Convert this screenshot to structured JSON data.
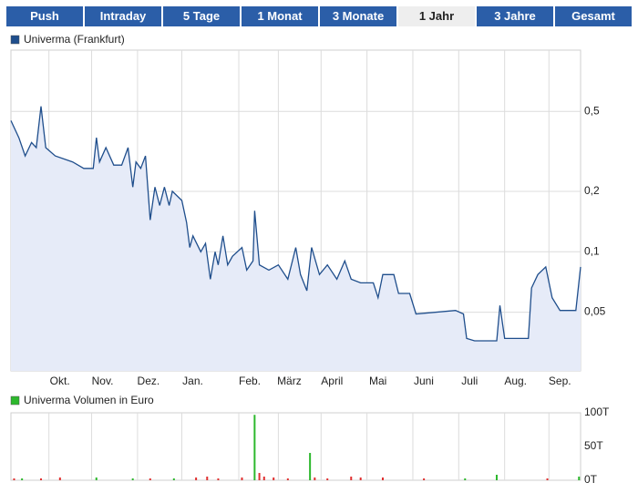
{
  "tabs": [
    "Push",
    "Intraday",
    "5 Tage",
    "1 Monat",
    "3 Monate",
    "1 Jahr",
    "3 Jahre",
    "Gesamt"
  ],
  "active_tab": 5,
  "chart_data": [
    {
      "type": "line",
      "yscale": "log",
      "grid": true,
      "area": true,
      "xlim": [
        0,
        360
      ],
      "ylim": [
        0.0255,
        1.01
      ],
      "xticks": [
        {
          "value": 24,
          "label": "Okt."
        },
        {
          "value": 51,
          "label": "Nov."
        },
        {
          "value": 80,
          "label": "Dez."
        },
        {
          "value": 108,
          "label": "Jan."
        },
        {
          "value": 144,
          "label": "Feb."
        },
        {
          "value": 169,
          "label": "März"
        },
        {
          "value": 196,
          "label": "April"
        },
        {
          "value": 225,
          "label": "Mai"
        },
        {
          "value": 254,
          "label": "Juni"
        },
        {
          "value": 283,
          "label": "Juli"
        },
        {
          "value": 312,
          "label": "Aug."
        },
        {
          "value": 340,
          "label": "Sep."
        }
      ],
      "yticks": [
        {
          "value": 0.05,
          "label": "0,05"
        },
        {
          "value": 0.1,
          "label": "0,1"
        },
        {
          "value": 0.2,
          "label": "0,2"
        },
        {
          "value": 0.5,
          "label": "0,5"
        }
      ],
      "x": [
        0,
        5,
        9,
        13,
        16,
        19,
        22,
        28,
        39,
        46,
        52,
        54,
        56,
        60,
        65,
        70,
        74,
        77,
        79,
        82,
        85,
        88,
        91,
        94,
        97,
        100,
        102,
        108,
        111,
        113,
        115,
        120,
        123,
        126,
        129,
        131,
        134,
        137,
        140,
        146,
        149,
        153,
        154,
        157,
        163,
        169,
        175,
        180,
        183,
        187,
        190,
        195,
        200,
        206,
        211,
        215,
        221,
        229,
        232,
        235,
        242,
        245,
        252,
        256,
        281,
        286,
        288,
        293,
        307,
        309,
        312,
        316,
        327,
        329,
        333,
        338,
        342,
        347,
        357,
        360
      ],
      "series": [
        {
          "name": "Univerma (Frankfurt)",
          "color": "#1f4e8c",
          "values": [
            0.45,
            0.37,
            0.3,
            0.35,
            0.33,
            0.53,
            0.33,
            0.3,
            0.28,
            0.26,
            0.26,
            0.37,
            0.28,
            0.33,
            0.27,
            0.27,
            0.33,
            0.21,
            0.28,
            0.26,
            0.3,
            0.144,
            0.21,
            0.17,
            0.21,
            0.17,
            0.2,
            0.18,
            0.14,
            0.105,
            0.12,
            0.1,
            0.11,
            0.073,
            0.1,
            0.086,
            0.12,
            0.086,
            0.095,
            0.105,
            0.081,
            0.09,
            0.16,
            0.086,
            0.081,
            0.086,
            0.073,
            0.105,
            0.077,
            0.064,
            0.105,
            0.077,
            0.086,
            0.073,
            0.09,
            0.073,
            0.07,
            0.07,
            0.059,
            0.077,
            0.077,
            0.062,
            0.062,
            0.049,
            0.051,
            0.049,
            0.037,
            0.036,
            0.036,
            0.054,
            0.037,
            0.037,
            0.037,
            0.066,
            0.077,
            0.084,
            0.059,
            0.051,
            0.051,
            0.084
          ]
        }
      ]
    },
    {
      "type": "bar",
      "xlim": [
        0,
        360
      ],
      "ylim": [
        0,
        100000
      ],
      "yticks": [
        {
          "value": 0,
          "label": "0T"
        },
        {
          "value": 50000,
          "label": "50T"
        },
        {
          "value": 100000,
          "label": "100T"
        }
      ],
      "x": [
        2,
        7,
        19,
        31,
        54,
        77,
        88,
        103,
        117,
        124,
        131,
        146,
        154,
        157,
        160,
        166,
        175,
        189,
        192,
        200,
        215,
        221,
        235,
        261,
        287,
        307,
        339,
        359
      ],
      "series": [
        {
          "name": "Univerma Volumen in Euro",
          "color": "#2db82d",
          "values": [
            2700,
            2700,
            2700,
            4100,
            4100,
            2700,
            2700,
            2700,
            4100,
            5400,
            2700,
            4100,
            97000,
            10800,
            5400,
            4100,
            2700,
            40500,
            4100,
            2700,
            5400,
            4100,
            4100,
            2700,
            2700,
            8100,
            2700,
            5400
          ],
          "colors": [
            "#e03030",
            "#2db82d",
            "#e03030",
            "#e03030",
            "#2db82d",
            "#2db82d",
            "#e03030",
            "#2db82d",
            "#e03030",
            "#e03030",
            "#e03030",
            "#e03030",
            "#2db82d",
            "#e03030",
            "#e03030",
            "#e03030",
            "#e03030",
            "#2db82d",
            "#e03030",
            "#e03030",
            "#e03030",
            "#e03030",
            "#e03030",
            "#e03030",
            "#2db82d",
            "#2db82d",
            "#e03030",
            "#2db82d"
          ]
        }
      ]
    }
  ]
}
